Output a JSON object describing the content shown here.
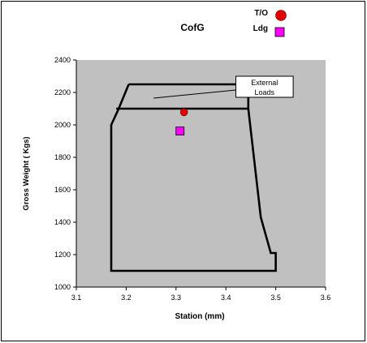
{
  "chart_data": {
    "type": "scatter",
    "title": "CofG",
    "xlabel": "Station (mm)",
    "ylabel": "Gross Weight ( Kgs)",
    "xlim": [
      3.1,
      3.6
    ],
    "ylim": [
      1000,
      2400
    ],
    "xticks": [
      "3.1",
      "3.2",
      "3.3",
      "3.4",
      "3.5",
      "3.6"
    ],
    "yticks": [
      "1000",
      "1200",
      "1400",
      "1600",
      "1800",
      "2000",
      "2200",
      "2400"
    ],
    "plot_background": "#c0c0c0",
    "grid": false,
    "legend_position": "top-right",
    "series": [
      {
        "name": "T/O",
        "marker": "circle",
        "color": "#e00000",
        "points": [
          {
            "x": 3.316,
            "y": 2078
          }
        ]
      },
      {
        "name": "Ldg",
        "marker": "square",
        "color": "#ff00ff",
        "points": [
          {
            "x": 3.308,
            "y": 1962
          }
        ]
      }
    ],
    "envelope": {
      "color": "#000000",
      "outline": [
        {
          "x": 3.205,
          "y": 2250
        },
        {
          "x": 3.445,
          "y": 2250
        },
        {
          "x": 3.445,
          "y": 2100
        },
        {
          "x": 3.47,
          "y": 1430
        },
        {
          "x": 3.49,
          "y": 1210
        },
        {
          "x": 3.5,
          "y": 1210
        },
        {
          "x": 3.5,
          "y": 1100
        },
        {
          "x": 3.17,
          "y": 1100
        },
        {
          "x": 3.17,
          "y": 2000
        },
        {
          "x": 3.185,
          "y": 2100
        },
        {
          "x": 3.205,
          "y": 2250
        }
      ],
      "inner_line": [
        {
          "x": 3.18,
          "y": 2100
        },
        {
          "x": 3.445,
          "y": 2100
        }
      ]
    },
    "annotations": [
      {
        "text_lines": [
          "External",
          "Loads"
        ],
        "box": {
          "x": [
            3.42,
            3.535
          ],
          "y": [
            2170,
            2300
          ]
        },
        "arrow_to": {
          "x": 3.255,
          "y": 2165
        }
      }
    ]
  }
}
